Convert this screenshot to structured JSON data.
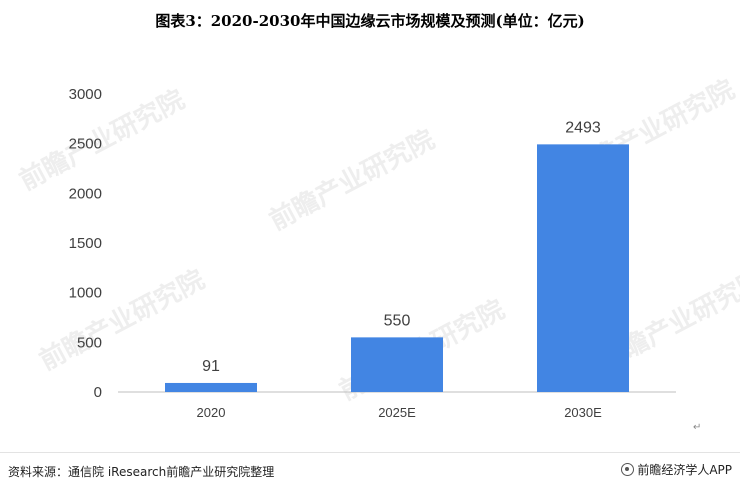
{
  "chart_data": {
    "type": "bar",
    "title": "图表3：2020-2030年中国边缘云市场规模及预测(单位：亿元)",
    "categories": [
      "2020",
      "2025E",
      "2030E"
    ],
    "values": [
      91,
      550,
      2493
    ],
    "data_labels": [
      "91",
      "550",
      "2493"
    ],
    "yticks": [
      "0",
      "500",
      "1000",
      "1500",
      "2000",
      "2500",
      "3000"
    ],
    "ylim": [
      0,
      3000
    ],
    "xlabel": "",
    "ylabel": "",
    "grid": false,
    "legend": "none",
    "bar_color": "#4285e3"
  },
  "footer": {
    "source": "资料来源：通信院 iResearch前瞻产业研究院整理",
    "publisher": "前瞻经济学人APP"
  },
  "watermark": {
    "text": "前瞻产业研究院"
  },
  "colors": {
    "bar": "#4285e3",
    "axis": "#bfbfbf",
    "text": "#404040"
  }
}
